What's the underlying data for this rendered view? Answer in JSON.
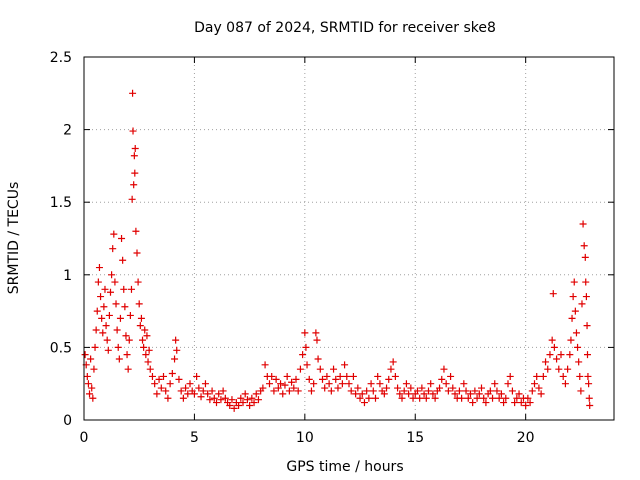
{
  "chart_data": {
    "type": "scatter",
    "title": "Day 087 of 2024, SRMTID for receiver ske8",
    "xlabel": "GPS time / hours",
    "ylabel": "SRMTID / TECUs",
    "xlim": [
      0,
      24
    ],
    "ylim": [
      0,
      2.5
    ],
    "x_ticks": [
      0,
      5,
      10,
      15,
      20
    ],
    "x_tick_labels": [
      "0",
      "5",
      "10",
      "15",
      "20"
    ],
    "y_ticks": [
      0,
      0.5,
      1,
      1.5,
      2,
      2.5
    ],
    "y_tick_labels": [
      "0",
      "0.5",
      "1",
      "1.5",
      "2",
      "2.5"
    ],
    "grid": true,
    "marker": "+",
    "color": "#e00000",
    "series": [
      {
        "name": "ske8",
        "points": [
          [
            0.05,
            0.45
          ],
          [
            0.1,
            0.38
          ],
          [
            0.15,
            0.3
          ],
          [
            0.2,
            0.25
          ],
          [
            0.25,
            0.18
          ],
          [
            0.3,
            0.42
          ],
          [
            0.35,
            0.22
          ],
          [
            0.4,
            0.15
          ],
          [
            0.45,
            0.35
          ],
          [
            0.5,
            0.5
          ],
          [
            0.55,
            0.62
          ],
          [
            0.6,
            0.75
          ],
          [
            0.65,
            0.95
          ],
          [
            0.7,
            1.05
          ],
          [
            0.75,
            0.85
          ],
          [
            0.8,
            0.7
          ],
          [
            0.85,
            0.6
          ],
          [
            0.9,
            0.78
          ],
          [
            0.95,
            0.9
          ],
          [
            1.0,
            0.65
          ],
          [
            1.05,
            0.55
          ],
          [
            1.1,
            0.48
          ],
          [
            1.15,
            0.72
          ],
          [
            1.2,
            0.88
          ],
          [
            1.25,
            1.0
          ],
          [
            1.3,
            1.18
          ],
          [
            1.35,
            1.28
          ],
          [
            1.4,
            0.95
          ],
          [
            1.45,
            0.8
          ],
          [
            1.5,
            0.62
          ],
          [
            1.55,
            0.5
          ],
          [
            1.6,
            0.42
          ],
          [
            1.65,
            0.7
          ],
          [
            1.7,
            1.25
          ],
          [
            1.75,
            1.1
          ],
          [
            1.8,
            0.9
          ],
          [
            1.85,
            0.78
          ],
          [
            1.9,
            0.58
          ],
          [
            1.95,
            0.45
          ],
          [
            2.0,
            0.35
          ],
          [
            2.05,
            0.55
          ],
          [
            2.1,
            0.72
          ],
          [
            2.15,
            0.9
          ],
          [
            2.18,
            1.52
          ],
          [
            2.2,
            2.25
          ],
          [
            2.22,
            1.99
          ],
          [
            2.25,
            1.62
          ],
          [
            2.28,
            1.82
          ],
          [
            2.3,
            1.7
          ],
          [
            2.32,
            1.87
          ],
          [
            2.35,
            1.3
          ],
          [
            2.4,
            1.15
          ],
          [
            2.45,
            0.95
          ],
          [
            2.5,
            0.8
          ],
          [
            2.55,
            0.65
          ],
          [
            2.6,
            0.7
          ],
          [
            2.65,
            0.55
          ],
          [
            2.7,
            0.5
          ],
          [
            2.75,
            0.62
          ],
          [
            2.8,
            0.45
          ],
          [
            2.85,
            0.58
          ],
          [
            2.9,
            0.4
          ],
          [
            2.95,
            0.48
          ],
          [
            3.0,
            0.35
          ],
          [
            3.1,
            0.3
          ],
          [
            3.2,
            0.25
          ],
          [
            3.3,
            0.18
          ],
          [
            3.4,
            0.28
          ],
          [
            3.5,
            0.22
          ],
          [
            3.6,
            0.3
          ],
          [
            3.7,
            0.2
          ],
          [
            3.8,
            0.15
          ],
          [
            3.9,
            0.25
          ],
          [
            4.0,
            0.32
          ],
          [
            4.1,
            0.42
          ],
          [
            4.15,
            0.55
          ],
          [
            4.2,
            0.48
          ],
          [
            4.3,
            0.28
          ],
          [
            4.4,
            0.2
          ],
          [
            4.5,
            0.15
          ],
          [
            4.6,
            0.22
          ],
          [
            4.7,
            0.18
          ],
          [
            4.8,
            0.25
          ],
          [
            4.9,
            0.2
          ],
          [
            5.0,
            0.18
          ],
          [
            5.1,
            0.3
          ],
          [
            5.2,
            0.22
          ],
          [
            5.3,
            0.16
          ],
          [
            5.4,
            0.2
          ],
          [
            5.5,
            0.25
          ],
          [
            5.6,
            0.18
          ],
          [
            5.7,
            0.14
          ],
          [
            5.8,
            0.2
          ],
          [
            5.9,
            0.15
          ],
          [
            6.0,
            0.12
          ],
          [
            6.1,
            0.18
          ],
          [
            6.2,
            0.14
          ],
          [
            6.3,
            0.2
          ],
          [
            6.4,
            0.15
          ],
          [
            6.5,
            0.12
          ],
          [
            6.6,
            0.1
          ],
          [
            6.7,
            0.14
          ],
          [
            6.8,
            0.08
          ],
          [
            6.9,
            0.12
          ],
          [
            7.0,
            0.1
          ],
          [
            7.1,
            0.15
          ],
          [
            7.2,
            0.12
          ],
          [
            7.3,
            0.18
          ],
          [
            7.4,
            0.14
          ],
          [
            7.5,
            0.1
          ],
          [
            7.6,
            0.15
          ],
          [
            7.7,
            0.12
          ],
          [
            7.8,
            0.18
          ],
          [
            7.9,
            0.14
          ],
          [
            8.0,
            0.2
          ],
          [
            8.1,
            0.22
          ],
          [
            8.2,
            0.38
          ],
          [
            8.3,
            0.3
          ],
          [
            8.4,
            0.25
          ],
          [
            8.5,
            0.3
          ],
          [
            8.6,
            0.2
          ],
          [
            8.7,
            0.28
          ],
          [
            8.8,
            0.22
          ],
          [
            8.9,
            0.25
          ],
          [
            9.0,
            0.18
          ],
          [
            9.1,
            0.24
          ],
          [
            9.2,
            0.3
          ],
          [
            9.3,
            0.2
          ],
          [
            9.4,
            0.26
          ],
          [
            9.5,
            0.22
          ],
          [
            9.6,
            0.28
          ],
          [
            9.7,
            0.2
          ],
          [
            9.8,
            0.35
          ],
          [
            9.9,
            0.45
          ],
          [
            10.0,
            0.6
          ],
          [
            10.05,
            0.5
          ],
          [
            10.1,
            0.38
          ],
          [
            10.2,
            0.28
          ],
          [
            10.3,
            0.2
          ],
          [
            10.4,
            0.25
          ],
          [
            10.5,
            0.6
          ],
          [
            10.55,
            0.55
          ],
          [
            10.6,
            0.42
          ],
          [
            10.7,
            0.35
          ],
          [
            10.8,
            0.28
          ],
          [
            10.9,
            0.22
          ],
          [
            11.0,
            0.3
          ],
          [
            11.1,
            0.25
          ],
          [
            11.2,
            0.2
          ],
          [
            11.3,
            0.35
          ],
          [
            11.4,
            0.28
          ],
          [
            11.5,
            0.22
          ],
          [
            11.6,
            0.3
          ],
          [
            11.7,
            0.25
          ],
          [
            11.8,
            0.38
          ],
          [
            11.9,
            0.3
          ],
          [
            12.0,
            0.25
          ],
          [
            12.1,
            0.2
          ],
          [
            12.2,
            0.3
          ],
          [
            12.3,
            0.18
          ],
          [
            12.4,
            0.22
          ],
          [
            12.5,
            0.15
          ],
          [
            12.6,
            0.18
          ],
          [
            12.7,
            0.12
          ],
          [
            12.8,
            0.2
          ],
          [
            12.9,
            0.15
          ],
          [
            13.0,
            0.25
          ],
          [
            13.1,
            0.2
          ],
          [
            13.2,
            0.15
          ],
          [
            13.3,
            0.3
          ],
          [
            13.4,
            0.25
          ],
          [
            13.5,
            0.2
          ],
          [
            13.6,
            0.18
          ],
          [
            13.7,
            0.22
          ],
          [
            13.8,
            0.28
          ],
          [
            13.9,
            0.35
          ],
          [
            14.0,
            0.4
          ],
          [
            14.1,
            0.3
          ],
          [
            14.2,
            0.22
          ],
          [
            14.3,
            0.18
          ],
          [
            14.4,
            0.15
          ],
          [
            14.5,
            0.2
          ],
          [
            14.6,
            0.25
          ],
          [
            14.7,
            0.18
          ],
          [
            14.8,
            0.22
          ],
          [
            14.9,
            0.15
          ],
          [
            15.0,
            0.18
          ],
          [
            15.1,
            0.2
          ],
          [
            15.2,
            0.15
          ],
          [
            15.3,
            0.22
          ],
          [
            15.4,
            0.18
          ],
          [
            15.5,
            0.15
          ],
          [
            15.6,
            0.2
          ],
          [
            15.7,
            0.25
          ],
          [
            15.8,
            0.18
          ],
          [
            15.9,
            0.15
          ],
          [
            16.0,
            0.2
          ],
          [
            16.1,
            0.22
          ],
          [
            16.2,
            0.28
          ],
          [
            16.3,
            0.35
          ],
          [
            16.4,
            0.25
          ],
          [
            16.5,
            0.2
          ],
          [
            16.6,
            0.3
          ],
          [
            16.7,
            0.22
          ],
          [
            16.8,
            0.18
          ],
          [
            16.9,
            0.15
          ],
          [
            17.0,
            0.2
          ],
          [
            17.1,
            0.15
          ],
          [
            17.2,
            0.25
          ],
          [
            17.3,
            0.2
          ],
          [
            17.4,
            0.15
          ],
          [
            17.5,
            0.18
          ],
          [
            17.6,
            0.12
          ],
          [
            17.7,
            0.2
          ],
          [
            17.8,
            0.15
          ],
          [
            17.9,
            0.18
          ],
          [
            18.0,
            0.22
          ],
          [
            18.1,
            0.15
          ],
          [
            18.2,
            0.12
          ],
          [
            18.3,
            0.18
          ],
          [
            18.4,
            0.2
          ],
          [
            18.5,
            0.15
          ],
          [
            18.6,
            0.25
          ],
          [
            18.7,
            0.2
          ],
          [
            18.8,
            0.15
          ],
          [
            18.9,
            0.18
          ],
          [
            19.0,
            0.12
          ],
          [
            19.1,
            0.15
          ],
          [
            19.2,
            0.25
          ],
          [
            19.3,
            0.3
          ],
          [
            19.4,
            0.2
          ],
          [
            19.5,
            0.12
          ],
          [
            19.6,
            0.15
          ],
          [
            19.7,
            0.18
          ],
          [
            19.8,
            0.12
          ],
          [
            19.9,
            0.15
          ],
          [
            20.0,
            0.1
          ],
          [
            20.1,
            0.15
          ],
          [
            20.2,
            0.12
          ],
          [
            20.3,
            0.2
          ],
          [
            20.4,
            0.25
          ],
          [
            20.5,
            0.3
          ],
          [
            20.6,
            0.22
          ],
          [
            20.7,
            0.18
          ],
          [
            20.8,
            0.3
          ],
          [
            20.9,
            0.4
          ],
          [
            21.0,
            0.35
          ],
          [
            21.1,
            0.45
          ],
          [
            21.2,
            0.55
          ],
          [
            21.25,
            0.87
          ],
          [
            21.3,
            0.5
          ],
          [
            21.4,
            0.42
          ],
          [
            21.5,
            0.35
          ],
          [
            21.6,
            0.45
          ],
          [
            21.7,
            0.3
          ],
          [
            21.8,
            0.25
          ],
          [
            21.9,
            0.35
          ],
          [
            22.0,
            0.45
          ],
          [
            22.05,
            0.55
          ],
          [
            22.1,
            0.7
          ],
          [
            22.15,
            0.85
          ],
          [
            22.2,
            0.95
          ],
          [
            22.25,
            0.75
          ],
          [
            22.3,
            0.6
          ],
          [
            22.35,
            0.5
          ],
          [
            22.4,
            0.4
          ],
          [
            22.45,
            0.3
          ],
          [
            22.5,
            0.2
          ],
          [
            22.55,
            0.8
          ],
          [
            22.6,
            1.35
          ],
          [
            22.65,
            1.2
          ],
          [
            22.7,
            1.12
          ],
          [
            22.72,
            0.95
          ],
          [
            22.75,
            0.85
          ],
          [
            22.78,
            0.65
          ],
          [
            22.8,
            0.45
          ],
          [
            22.82,
            0.3
          ],
          [
            22.85,
            0.25
          ],
          [
            22.88,
            0.15
          ],
          [
            22.9,
            0.1
          ]
        ]
      }
    ]
  }
}
